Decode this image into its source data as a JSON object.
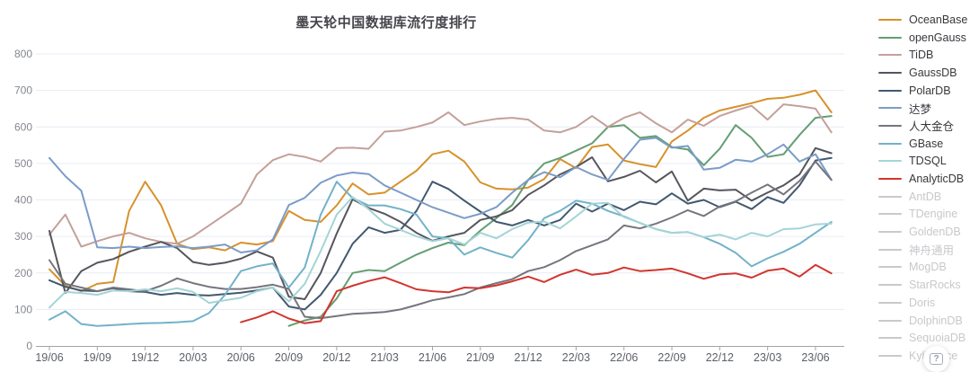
{
  "title": "墨天轮中国数据库流行度排行",
  "help_button": {
    "glyph": "?"
  },
  "colors": {
    "grid": "#e6ecf4",
    "axis": "#a0a4ab",
    "y_label": "#85888f",
    "x_label": "#5c6066",
    "disabled": "#c9c9ce"
  },
  "chart_data": {
    "type": "line",
    "title": "墨天轮中国数据库流行度排行",
    "grid": true,
    "legend_position": "right",
    "y_axis": {
      "min": 0,
      "max": 800,
      "step": 100,
      "tick_labels": [
        "0",
        "100",
        "200",
        "300",
        "400",
        "500",
        "600",
        "700",
        "800"
      ]
    },
    "x_axis": {
      "tick_labels": [
        "19/06",
        "19/09",
        "19/12",
        "20/03",
        "20/06",
        "20/09",
        "20/12",
        "21/03",
        "21/06",
        "21/09",
        "21/12",
        "22/03",
        "22/06",
        "22/09",
        "22/12",
        "23/03",
        "23/06"
      ],
      "months": [
        "19/06",
        "19/07",
        "19/08",
        "19/09",
        "19/10",
        "19/11",
        "19/12",
        "20/01",
        "20/02",
        "20/03",
        "20/04",
        "20/05",
        "20/06",
        "20/07",
        "20/08",
        "20/09",
        "20/10",
        "20/11",
        "20/12",
        "21/01",
        "21/02",
        "21/03",
        "21/04",
        "21/05",
        "21/06",
        "21/07",
        "21/08",
        "21/09",
        "21/10",
        "21/11",
        "21/12",
        "22/01",
        "22/02",
        "22/03",
        "22/04",
        "22/05",
        "22/06",
        "22/07",
        "22/08",
        "22/09",
        "22/10",
        "22/11",
        "22/12",
        "23/01",
        "23/02",
        "23/03",
        "23/04",
        "23/05",
        "23/06",
        "23/07"
      ]
    },
    "series": [
      {
        "name": "OceanBase",
        "color": "#d6922c",
        "values": [
          210,
          165,
          150,
          170,
          175,
          370,
          450,
          385,
          280,
          265,
          270,
          262,
          283,
          278,
          287,
          370,
          345,
          340,
          385,
          445,
          415,
          420,
          450,
          480,
          525,
          535,
          505,
          448,
          431,
          429,
          434,
          457,
          512,
          487,
          545,
          552,
          508,
          498,
          490,
          560,
          590,
          625,
          645,
          655,
          665,
          677,
          680,
          688,
          700,
          640
        ]
      },
      {
        "name": "openGauss",
        "color": "#649e73",
        "values": [
          null,
          null,
          null,
          null,
          null,
          null,
          null,
          null,
          null,
          null,
          null,
          null,
          null,
          null,
          null,
          55,
          70,
          80,
          130,
          200,
          208,
          205,
          228,
          250,
          268,
          283,
          276,
          316,
          350,
          386,
          455,
          500,
          515,
          535,
          555,
          600,
          605,
          570,
          575,
          545,
          538,
          495,
          540,
          605,
          570,
          518,
          525,
          578,
          625,
          630
        ]
      },
      {
        "name": "TiDB",
        "color": "#c4a09a",
        "values": [
          305,
          360,
          272,
          287,
          300,
          310,
          295,
          285,
          280,
          300,
          330,
          360,
          390,
          470,
          509,
          525,
          518,
          505,
          542,
          543,
          540,
          587,
          590,
          600,
          612,
          640,
          605,
          615,
          622,
          625,
          620,
          590,
          585,
          600,
          630,
          600,
          625,
          640,
          610,
          585,
          620,
          603,
          630,
          645,
          658,
          620,
          662,
          657,
          650,
          585
        ]
      },
      {
        "name": "GaussDB",
        "color": "#55555d",
        "values": [
          315,
          145,
          205,
          228,
          238,
          258,
          272,
          285,
          268,
          230,
          222,
          228,
          239,
          259,
          242,
          135,
          128,
          200,
          308,
          402,
          378,
          362,
          340,
          310,
          288,
          300,
          310,
          345,
          355,
          372,
          414,
          440,
          470,
          490,
          517,
          451,
          463,
          480,
          448,
          478,
          398,
          431,
          426,
          428,
          398,
          420,
          440,
          470,
          542,
          528
        ]
      },
      {
        "name": "PolarDB",
        "color": "#42586f",
        "values": [
          180,
          162,
          152,
          150,
          158,
          150,
          148,
          140,
          145,
          140,
          138,
          142,
          146,
          152,
          160,
          108,
          100,
          140,
          200,
          280,
          325,
          310,
          318,
          370,
          450,
          430,
          398,
          368,
          340,
          330,
          345,
          330,
          345,
          390,
          368,
          390,
          372,
          395,
          388,
          418,
          390,
          400,
          380,
          395,
          375,
          408,
          392,
          440,
          508,
          515
        ]
      },
      {
        "name": "达梦",
        "color": "#7b9cc7",
        "values": [
          515,
          465,
          425,
          270,
          268,
          272,
          268,
          271,
          273,
          268,
          272,
          278,
          256,
          262,
          292,
          386,
          406,
          447,
          467,
          475,
          471,
          440,
          420,
          400,
          380,
          365,
          350,
          362,
          380,
          420,
          455,
          476,
          462,
          490,
          470,
          455,
          512,
          565,
          570,
          543,
          548,
          483,
          488,
          510,
          505,
          525,
          552,
          505,
          525,
          455
        ]
      },
      {
        "name": "人大金仓",
        "color": "#76757d",
        "values": [
          235,
          170,
          160,
          150,
          160,
          155,
          150,
          165,
          185,
          172,
          162,
          156,
          156,
          161,
          168,
          156,
          80,
          76,
          82,
          88,
          90,
          93,
          100,
          112,
          125,
          133,
          142,
          160,
          172,
          183,
          205,
          216,
          235,
          260,
          276,
          292,
          330,
          322,
          335,
          352,
          372,
          356,
          382,
          396,
          420,
          442,
          415,
          452,
          505,
          455
        ]
      },
      {
        "name": "GBase",
        "color": "#72b2c9",
        "values": [
          72,
          95,
          60,
          55,
          57,
          60,
          62,
          63,
          65,
          68,
          90,
          140,
          205,
          218,
          226,
          160,
          215,
          360,
          450,
          405,
          385,
          385,
          375,
          360,
          300,
          295,
          250,
          270,
          255,
          242,
          290,
          350,
          370,
          398,
          390,
          370,
          355,
          337,
          320,
          310,
          312,
          298,
          280,
          255,
          218,
          240,
          258,
          280,
          310,
          340
        ]
      },
      {
        "name": "TDSQL",
        "color": "#a4d4d6",
        "values": [
          105,
          148,
          145,
          140,
          152,
          150,
          155,
          150,
          158,
          148,
          118,
          125,
          132,
          150,
          160,
          122,
          170,
          260,
          360,
          408,
          375,
          335,
          318,
          300,
          287,
          295,
          278,
          310,
          295,
          320,
          338,
          341,
          322,
          355,
          390,
          392,
          353,
          337,
          320,
          310,
          312,
          298,
          305,
          292,
          310,
          300,
          320,
          322,
          333,
          335
        ]
      },
      {
        "name": "AnalyticDB",
        "color": "#d2352e",
        "values": [
          null,
          null,
          null,
          null,
          null,
          null,
          null,
          null,
          null,
          null,
          null,
          null,
          65,
          78,
          95,
          75,
          62,
          68,
          150,
          165,
          178,
          188,
          172,
          155,
          150,
          147,
          160,
          158,
          166,
          177,
          190,
          175,
          195,
          209,
          195,
          200,
          215,
          205,
          208,
          212,
          199,
          184,
          196,
          199,
          187,
          206,
          212,
          190,
          222,
          199
        ]
      }
    ],
    "disabled_series": [
      "AntDB",
      "TDengine",
      "GoldenDB",
      "神舟通用",
      "MogDB",
      "StarRocks",
      "Doris",
      "DolphinDB",
      "SequoiaDB",
      "Kyligence"
    ]
  }
}
